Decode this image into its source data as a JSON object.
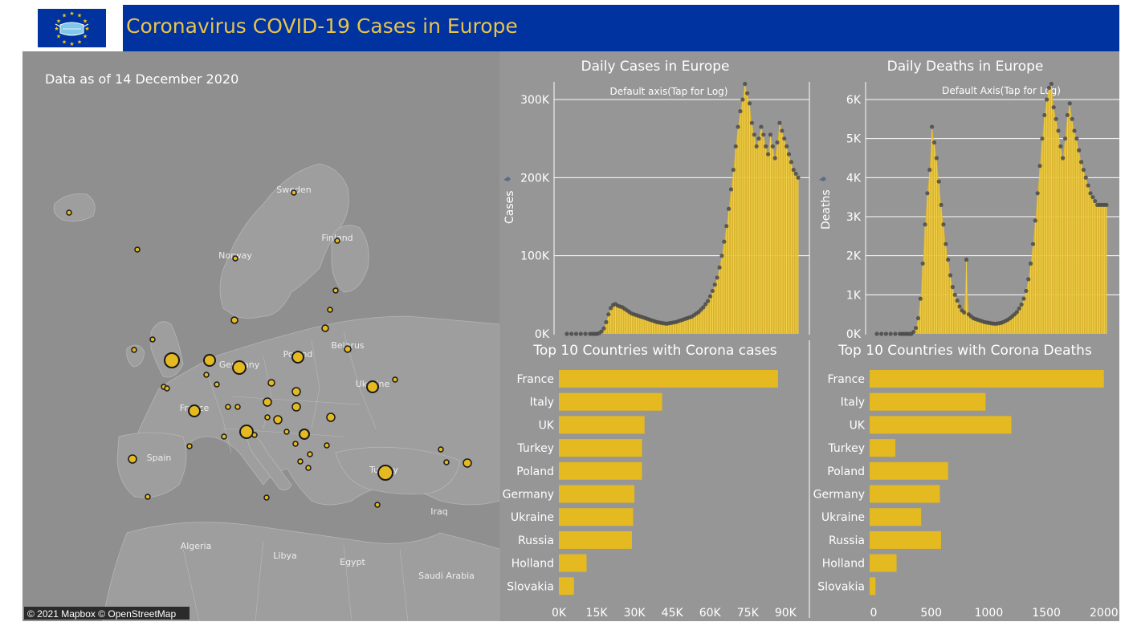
{
  "header": {
    "title": "Coronavirus COVID-19 Cases in Europe",
    "logo_icon": "eu-flag-mask-icon"
  },
  "map": {
    "date_note": "Data as of 14 December 2020",
    "attribution": "© 2021 Mapbox © OpenStreetMap",
    "place_labels": [
      "Sweden",
      "Finland",
      "Norway",
      "Poland",
      "Germany",
      "Belarus",
      "Ukraine",
      "France",
      "Spain",
      "Turkey",
      "Iraq",
      "Algeria",
      "Libya",
      "Egypt",
      "Saudi Arabia"
    ],
    "bubble_color": "#e5b920"
  },
  "daily_cases": {
    "title": "Daily Cases in Europe",
    "axis_note": "Default axis(Tap for Log)",
    "ylabel": "Cases",
    "yticks": [
      "0K",
      "100K",
      "200K",
      "300K"
    ]
  },
  "daily_deaths": {
    "title": "Daily Deaths in Europe",
    "axis_note": "Default Axis(Tap for Log)",
    "ylabel": "Deaths",
    "yticks": [
      "0K",
      "1K",
      "2K",
      "3K",
      "4K",
      "5K",
      "6K"
    ]
  },
  "top_cases": {
    "title": "Top 10 Countries with Corona cases",
    "xticks": [
      "0K",
      "15K",
      "30K",
      "45K",
      "60K",
      "75K",
      "90K"
    ]
  },
  "top_deaths": {
    "title": "Top 10 Countries with Corona Deaths",
    "xticks": [
      "0",
      "500",
      "1000",
      "1500",
      "2000"
    ]
  },
  "colors": {
    "header_bg": "#0033a0",
    "title_text": "#e8c44a",
    "panel_bg": "#969696",
    "bar": "#e5b920",
    "dot": "#4a4a4a"
  },
  "chart_data": [
    {
      "type": "area",
      "title": "Daily Cases in Europe",
      "ylabel": "Cases",
      "ylim": [
        0,
        300000
      ],
      "series": [
        {
          "name": "Cases",
          "x": [
            0,
            4,
            8,
            12,
            16,
            20,
            22,
            24,
            26,
            28,
            30,
            32,
            34,
            36,
            38,
            40,
            42,
            44,
            46,
            48,
            50,
            52,
            54,
            56,
            58,
            60,
            62,
            64,
            66,
            68,
            70,
            72,
            74,
            76,
            78,
            80,
            82,
            84,
            86,
            88,
            90,
            92,
            94,
            96,
            98,
            100,
            102,
            104,
            106,
            108,
            110,
            112,
            114,
            116,
            118,
            120,
            122,
            124,
            126,
            128,
            130,
            132,
            134,
            136,
            138,
            140,
            142,
            144,
            146,
            148,
            150,
            152,
            154,
            156,
            158,
            160,
            162,
            164,
            166,
            168,
            170,
            172,
            174,
            176,
            178,
            180,
            182,
            184,
            186,
            188,
            190,
            192,
            194,
            196,
            198,
            200
          ],
          "values": [
            0,
            0,
            0,
            0,
            0,
            0,
            0,
            0,
            0,
            1000,
            3000,
            7000,
            15000,
            25000,
            33000,
            37000,
            38000,
            36000,
            35000,
            34000,
            32000,
            30000,
            28000,
            26000,
            25000,
            24000,
            23000,
            22000,
            21000,
            20000,
            19000,
            18000,
            17000,
            16000,
            15000,
            14500,
            14000,
            13500,
            13000,
            13500,
            14000,
            14500,
            15000,
            16000,
            17000,
            18000,
            19000,
            20000,
            21000,
            22000,
            24000,
            26000,
            28000,
            31000,
            34000,
            38000,
            42000,
            48000,
            55000,
            63000,
            72000,
            85000,
            100000,
            118000,
            138000,
            160000,
            185000,
            210000,
            240000,
            265000,
            285000,
            300000,
            320000,
            308000,
            295000,
            270000,
            255000,
            240000,
            250000,
            265000,
            255000,
            240000,
            230000,
            255000,
            240000,
            225000,
            245000,
            270000,
            260000,
            250000,
            240000,
            230000,
            220000,
            210000,
            205000,
            200000
          ]
        }
      ]
    },
    {
      "type": "area",
      "title": "Daily Deaths in Europe",
      "ylabel": "Deaths",
      "ylim": [
        0,
        6000
      ],
      "series": [
        {
          "name": "Deaths",
          "x": [
            0,
            4,
            8,
            12,
            16,
            20,
            22,
            24,
            26,
            28,
            30,
            32,
            34,
            36,
            38,
            40,
            42,
            44,
            46,
            48,
            50,
            52,
            54,
            56,
            58,
            60,
            62,
            64,
            66,
            68,
            70,
            72,
            74,
            76,
            78,
            80,
            82,
            84,
            86,
            88,
            90,
            92,
            94,
            96,
            98,
            100,
            102,
            104,
            106,
            108,
            110,
            112,
            114,
            116,
            118,
            120,
            122,
            124,
            126,
            128,
            130,
            132,
            134,
            136,
            138,
            140,
            142,
            144,
            146,
            148,
            150,
            152,
            154,
            156,
            158,
            160,
            162,
            164,
            166,
            168,
            170,
            172,
            174,
            176,
            178,
            180,
            182,
            184,
            186,
            188,
            190,
            192,
            194,
            196,
            198,
            200
          ],
          "values": [
            0,
            0,
            0,
            0,
            0,
            0,
            0,
            0,
            0,
            0,
            0,
            50,
            150,
            400,
            900,
            1800,
            2800,
            3600,
            4200,
            5300,
            4900,
            4500,
            3900,
            3300,
            2800,
            2300,
            1900,
            1500,
            1200,
            1000,
            850,
            700,
            600,
            550,
            1900,
            500,
            450,
            400,
            380,
            360,
            340,
            320,
            300,
            290,
            280,
            270,
            260,
            260,
            270,
            280,
            300,
            330,
            360,
            400,
            450,
            500,
            560,
            650,
            750,
            900,
            1100,
            1400,
            1800,
            2300,
            2900,
            3600,
            4300,
            5000,
            5600,
            6000,
            6300,
            6400,
            5800,
            5500,
            5200,
            4800,
            4500,
            5000,
            5600,
            5900,
            5500,
            5200,
            5000,
            4700,
            4400,
            4200,
            4000,
            3800,
            3600,
            3500,
            3400,
            3300,
            3300,
            3300,
            3300,
            3300
          ]
        }
      ]
    },
    {
      "type": "bar",
      "title": "Top 10 Countries with Corona cases",
      "categories": [
        "France",
        "Italy",
        "UK",
        "Turkey",
        "Poland",
        "Germany",
        "Ukraine",
        "Russia",
        "Holland",
        "Slovakia"
      ],
      "values": [
        87000,
        41000,
        34000,
        33000,
        33000,
        30000,
        29500,
        29000,
        11000,
        6000
      ],
      "xlim": [
        0,
        95000
      ]
    },
    {
      "type": "bar",
      "title": "Top 10 Countries with Corona Deaths",
      "categories": [
        "France",
        "Italy",
        "UK",
        "Turkey",
        "Poland",
        "Germany",
        "Ukraine",
        "Russia",
        "Holland",
        "Slovakia"
      ],
      "values": [
        2000,
        990,
        1210,
        220,
        670,
        600,
        440,
        610,
        230,
        50
      ],
      "xlim": [
        0,
        2050
      ]
    }
  ]
}
